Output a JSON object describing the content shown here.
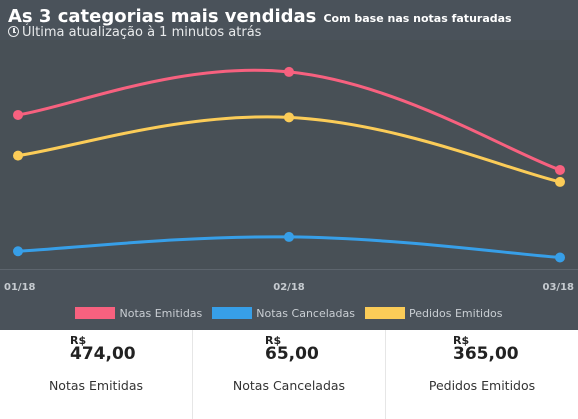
{
  "header": {
    "title": "As 3 categorias mais vendidas",
    "subtitle": "Com base nas notas faturadas",
    "updated": "Última atualização à 1 minutos atrás"
  },
  "colors": {
    "background": "#4a525a",
    "notas_emitidas": "#f7617f",
    "notas_canceladas": "#379fe8",
    "pedidos_emitidos": "#fbcc58"
  },
  "chart_data": {
    "type": "line",
    "x": [
      "01/18",
      "02/18",
      "03/18"
    ],
    "series": [
      {
        "name": "Notas Emitidas",
        "values": [
          310,
          400,
          195
        ],
        "color": "#f7617f"
      },
      {
        "name": "Notas Canceladas",
        "values": [
          25,
          55,
          12
        ],
        "color": "#379fe8"
      },
      {
        "name": "Pedidos Emitidos",
        "values": [
          225,
          305,
          170
        ],
        "color": "#fbcc58"
      }
    ],
    "ylim": [
      -10,
      450
    ],
    "grid": false,
    "legend": "bottom"
  },
  "legend": [
    {
      "label": "Notas Emitidas"
    },
    {
      "label": "Notas Canceladas"
    },
    {
      "label": "Pedidos Emitidos"
    }
  ],
  "stats": [
    {
      "currency": "R$",
      "value": "474,00",
      "label": "Notas Emitidas"
    },
    {
      "currency": "R$",
      "value": "65,00",
      "label": "Notas Canceladas"
    },
    {
      "currency": "R$",
      "value": "365,00",
      "label": "Pedidos Emitidos"
    }
  ]
}
